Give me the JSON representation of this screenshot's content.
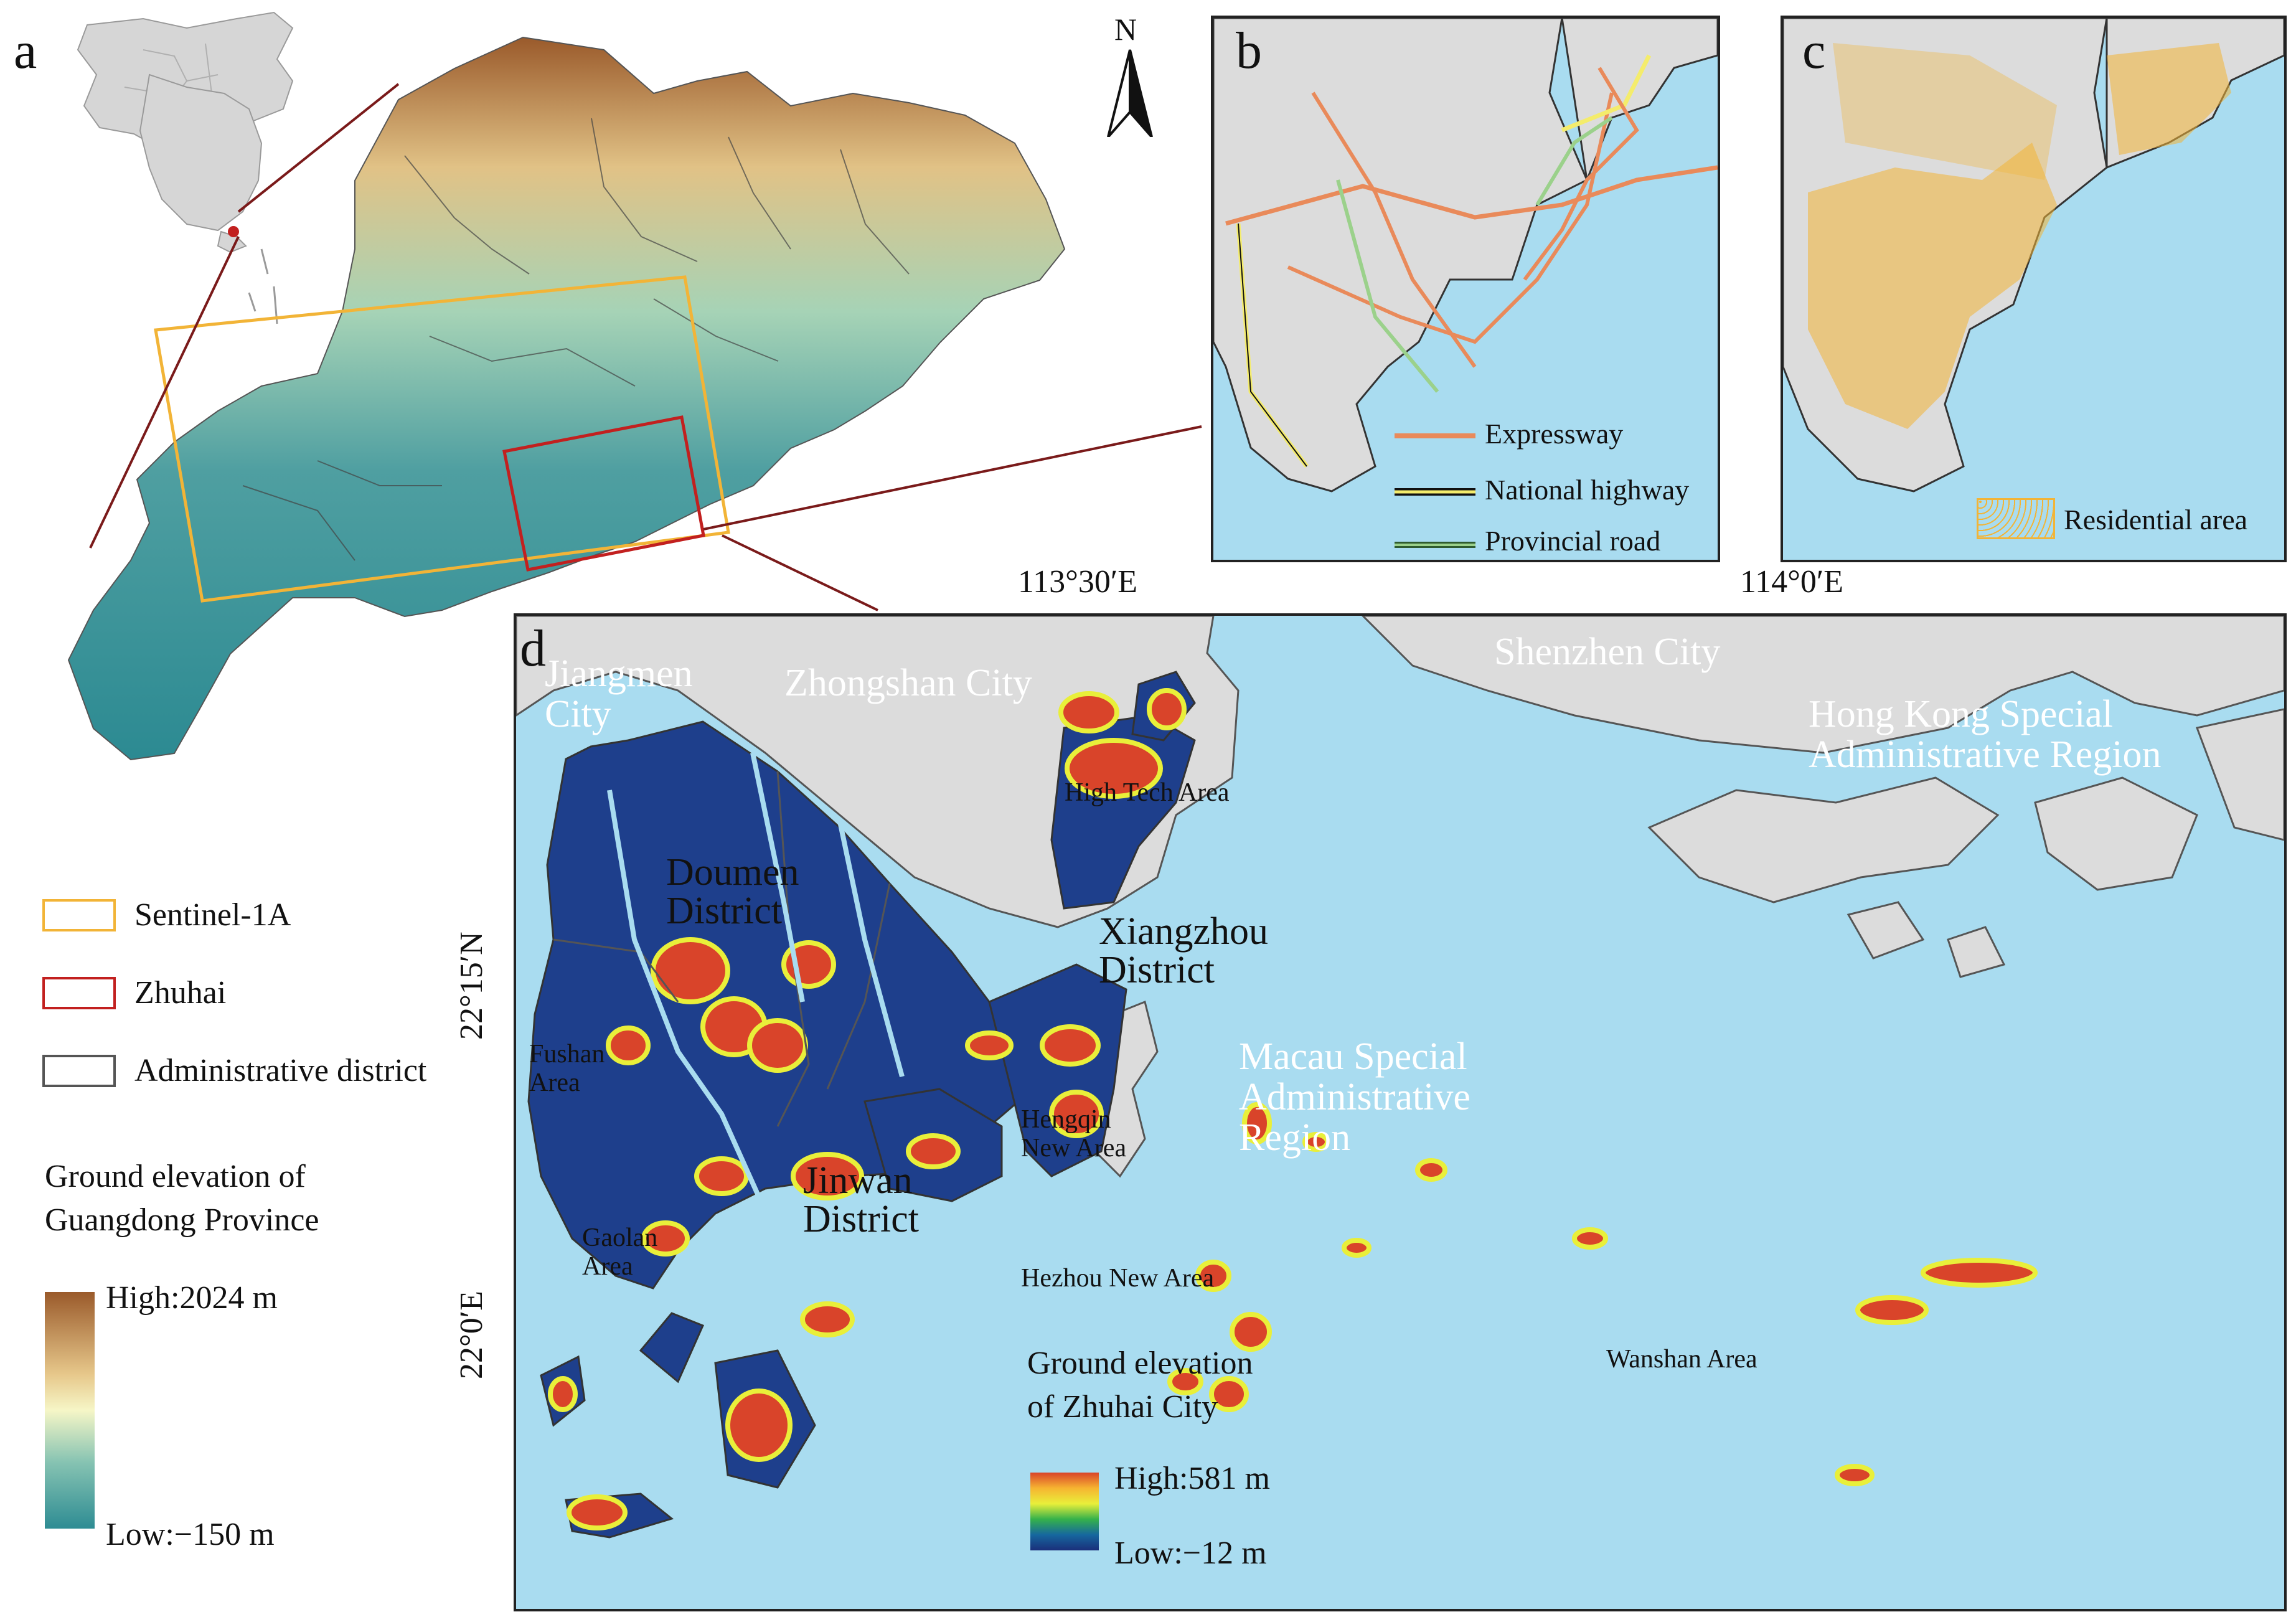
{
  "panels": {
    "a": "a",
    "b": "b",
    "c": "c",
    "d": "d"
  },
  "north_arrow": {
    "label": "N",
    "icon": "north-arrow-icon"
  },
  "legend_a": {
    "items": [
      {
        "label": "Sentinel-1A",
        "color": "#f2b437"
      },
      {
        "label": "Zhuhai",
        "color": "#c2201f"
      },
      {
        "label": "Administrative district",
        "color": "#555555"
      }
    ],
    "elevation_title_line1": "Ground elevation of",
    "elevation_title_line2": "Guangdong Province",
    "high": "High:2024 m",
    "low": "Low:−150 m",
    "ramp_colors": [
      "#9a5a2b",
      "#e7c88b",
      "#f6f6c7",
      "#86c3b2",
      "#2e8c93"
    ]
  },
  "panel_b": {
    "legend": [
      {
        "label": "Expressway",
        "color": "#e98a5a"
      },
      {
        "label": "National highway",
        "color": "#f4ec6c"
      },
      {
        "label": "Provincial road",
        "color": "#9bd18b"
      }
    ]
  },
  "panel_c": {
    "legend": [
      {
        "label": "Residential area",
        "color": "#f2b437"
      }
    ]
  },
  "panel_d": {
    "lon_ticks": [
      "113°30′E",
      "114°0′E"
    ],
    "lat_ticks": [
      "22°15′N",
      "22°0′E"
    ],
    "cities": {
      "jiangmen_1": "Jiangmen",
      "jiangmen_2": "City",
      "zhongshan": "Zhongshan City",
      "shenzhen": "Shenzhen City",
      "hongkong_1": "Hong Kong Special",
      "hongkong_2": "Administrative Region",
      "macau_1": "Macau Special",
      "macau_2": "Administrative",
      "macau_3": "Region"
    },
    "districts": {
      "doumen_1": "Doumen",
      "doumen_2": "District",
      "xiangzhou_1": "Xiangzhou",
      "xiangzhou_2": "District",
      "jinwan_1": "Jinwan",
      "jinwan_2": "District"
    },
    "areas": {
      "hightech": "High Tech Area",
      "fushan_1": "Fushan",
      "fushan_2": "Area",
      "hengqin_1": "Hengqin",
      "hengqin_2": "New Area",
      "gaolan_1": "Gaolan",
      "gaolan_2": "Area",
      "hezhou": "Hezhou New Area",
      "wanshan": "Wanshan Area"
    },
    "elevation_title_line1": "Ground elevation",
    "elevation_title_line2": "of Zhuhai City",
    "high": "High:581 m",
    "low": "Low:−12 m",
    "ramp_colors": [
      "#d9442a",
      "#f6b431",
      "#e9ef3a",
      "#35b14b",
      "#16679f",
      "#1a2f7a"
    ]
  }
}
